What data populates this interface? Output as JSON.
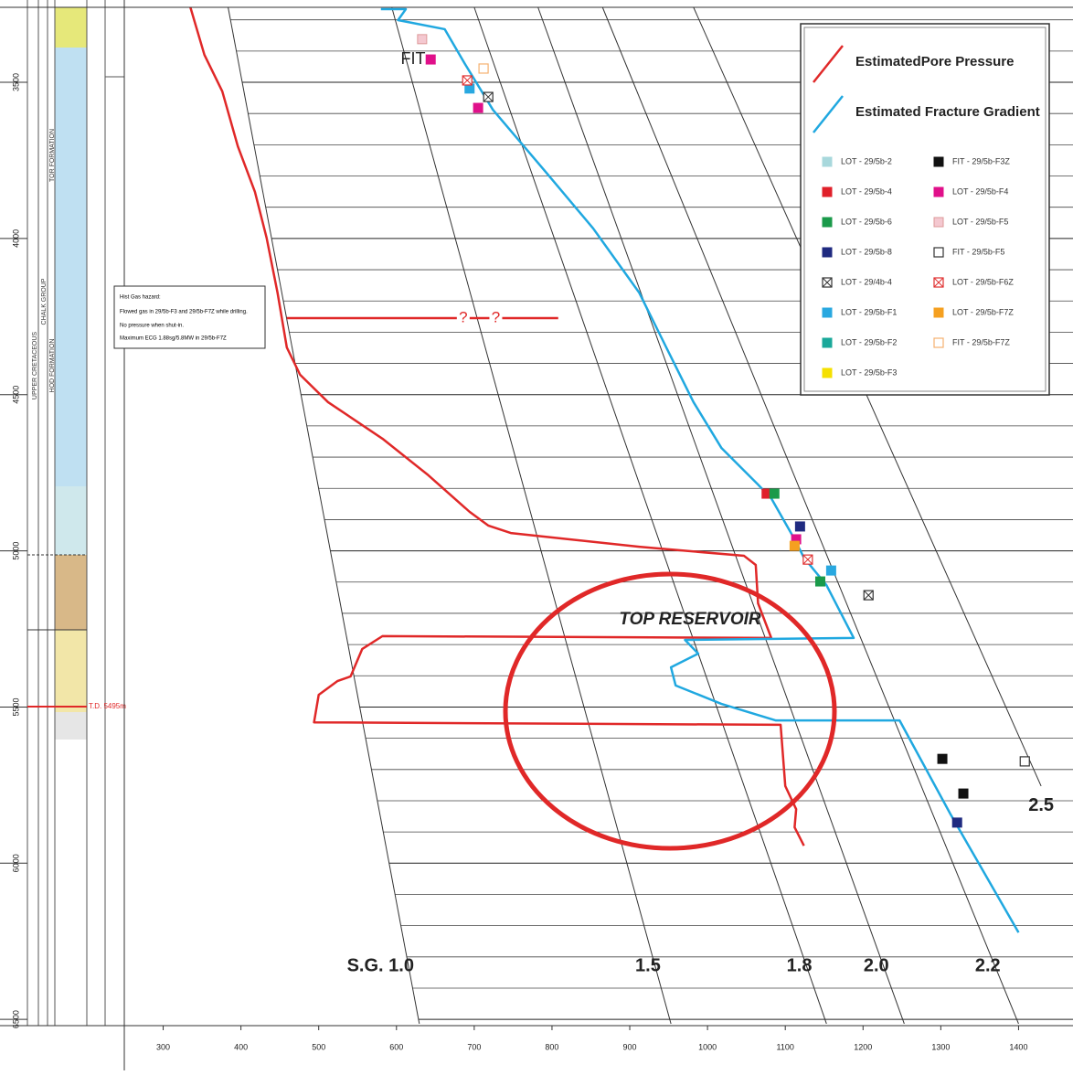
{
  "chart_data": {
    "type": "line",
    "xlim": [
      250,
      1470
    ],
    "ylim": [
      3260,
      6520
    ],
    "y_inverted": true,
    "xticks": [
      300,
      400,
      500,
      600,
      700,
      800,
      900,
      1000,
      1100,
      1200,
      1300,
      1400
    ],
    "yticks": [
      3500,
      4000,
      4500,
      5000,
      5500,
      6000,
      6500
    ],
    "y_minor_ticks": [
      3300,
      3400,
      3600,
      3700,
      3800,
      3900,
      4100,
      4200,
      4300,
      4400,
      4600,
      4700,
      4800,
      4900,
      5100,
      5200,
      5300,
      5400,
      5600,
      5700,
      5800,
      5900,
      6100,
      6200,
      6300,
      6400
    ],
    "series": [
      {
        "name": "EstimatedPore Pressure",
        "color": "#e02828",
        "x": [
          335,
          353,
          376,
          396,
          418,
          433,
          447,
          459,
          476,
          512,
          582,
          641,
          694,
          718,
          747,
          912,
          1047,
          1062,
          1065,
          1082,
          582,
          556,
          541,
          524,
          500,
          494,
          1094,
          1100,
          1114,
          1112,
          1124
        ],
        "y": [
          3260,
          3412,
          3529,
          3705,
          3851,
          3998,
          4173,
          4349,
          4436,
          4524,
          4641,
          4758,
          4875,
          4919,
          4943,
          4987,
          5016,
          5045,
          5168,
          5279,
          5273,
          5314,
          5402,
          5417,
          5461,
          5549,
          5557,
          5753,
          5827,
          5885,
          5944
        ]
      },
      {
        "name": "Estimated Fracture Gradient",
        "color": "#20a8e0",
        "x": [
          580,
          612,
          602,
          662,
          688,
          724,
          794,
          853,
          912,
          947,
          982,
          1018,
          1065,
          1082,
          1112,
          1124,
          1153,
          1188,
          971,
          988,
          953,
          959,
          1018,
          1088,
          1247,
          1312,
          1400
        ],
        "y": [
          3266,
          3266,
          3301,
          3330,
          3441,
          3588,
          3793,
          3968,
          4173,
          4349,
          4524,
          4671,
          4788,
          4832,
          4963,
          5022,
          5110,
          5279,
          5285,
          5329,
          5373,
          5431,
          5490,
          5543,
          5543,
          5841,
          6222
        ]
      }
    ],
    "markers": [
      {
        "name": "LOT - 29/5b-2",
        "color": "#a8d8dc",
        "style": "filled",
        "x": [],
        "y": []
      },
      {
        "name": "LOT - 29/5b-4",
        "color": "#e0202a",
        "style": "filled",
        "x": [
          1076
        ],
        "y": [
          4817
        ]
      },
      {
        "name": "LOT - 29/5b-6",
        "color": "#1a9a4a",
        "style": "filled",
        "x": [
          1086,
          1145
        ],
        "y": [
          4817,
          5098
        ]
      },
      {
        "name": "LOT - 29/5b-8",
        "color": "#1f2a80",
        "style": "filled",
        "x": [
          1119,
          1321
        ],
        "y": [
          4922,
          5870
        ]
      },
      {
        "name": "LOT - 29/4b-4",
        "color": "#333333",
        "style": "crossed",
        "x": [
          718,
          1207
        ],
        "y": [
          3547,
          5142
        ]
      },
      {
        "name": "LOT - 29/5b-F1",
        "color": "#29a8e0",
        "style": "filled",
        "x": [
          694,
          1159
        ],
        "y": [
          3520,
          5063
        ]
      },
      {
        "name": "LOT - 29/5b-F2",
        "color": "#1aa89a",
        "style": "filled",
        "x": [],
        "y": []
      },
      {
        "name": "LOT - 29/5b-F3",
        "color": "#f5e000",
        "style": "filled",
        "x": [],
        "y": []
      },
      {
        "name": "FIT - 29/5b-F3Z",
        "color": "#111111",
        "style": "filled",
        "x": [
          1302,
          1329
        ],
        "y": [
          5666,
          5777
        ]
      },
      {
        "name": "LOT - 29/5b-F4",
        "color": "#e0108a",
        "style": "filled",
        "x": [
          644,
          705,
          1114
        ],
        "y": [
          3427,
          3582,
          4963
        ]
      },
      {
        "name": "LOT - 29/5b-F5",
        "color": "#f4c8d0",
        "style": "filled",
        "x": [
          633
        ],
        "y": [
          3362
        ]
      },
      {
        "name": "FIT - 29/5b-F5",
        "color": "#333333",
        "style": "hollow",
        "x": [
          1408
        ],
        "y": [
          5674
        ]
      },
      {
        "name": "LOT - 29/5b-F6Z",
        "color": "#e03030",
        "style": "crossed",
        "x": [
          691,
          1129
        ],
        "y": [
          3494,
          5028
        ]
      },
      {
        "name": "LOT - 29/5b-F7Z",
        "color": "#f5a020",
        "style": "filled",
        "x": [
          1112
        ],
        "y": [
          4984
        ]
      },
      {
        "name": "FIT - 29/5b-F7Z",
        "color": "#f5b070",
        "style": "hollow",
        "x": [
          712
        ],
        "y": [
          3456
        ]
      }
    ],
    "gradient_lines": [
      {
        "label": "S.G. 1.0",
        "x": [
          383.5,
          629.4
        ],
        "y": [
          3260,
          6514
        ]
      },
      {
        "label": "1.5",
        "x": [
          594,
          953
        ],
        "y": [
          3260,
          6514
        ]
      },
      {
        "label": "1.8",
        "x": [
          700,
          1153
        ],
        "y": [
          3260,
          6514
        ]
      },
      {
        "label": "2.0",
        "x": [
          782,
          1253
        ],
        "y": [
          3260,
          6514
        ]
      },
      {
        "label": "2.2",
        "x": [
          865,
          1400
        ],
        "y": [
          3260,
          6514
        ]
      },
      {
        "label": "2.5",
        "x": [
          982,
          1429
        ],
        "y": [
          3260,
          5753
        ]
      }
    ],
    "annotations": {
      "fit_label": "FIT",
      "top_reservoir": "TOP RESERVOIR",
      "query_line": {
        "x": [
          459,
          808
        ],
        "y": 4255,
        "labels": [
          "?",
          "?"
        ]
      },
      "note": [
        "Hist Gas hazard:",
        "Flowed gas in 29/5b-F3 and 29/5b-F7Z while drilling.",
        "No pressure when shut-in.",
        "Maximum ECG 1.88sg/5.8MW in 29/5b-F7Z"
      ],
      "td_label": "T.D. 5495m"
    },
    "stratigraphy": [
      "UPPER CRETACEOUS",
      "CHALK GROUP",
      "TOR FORMATION",
      "HOD FORMATION"
    ]
  }
}
